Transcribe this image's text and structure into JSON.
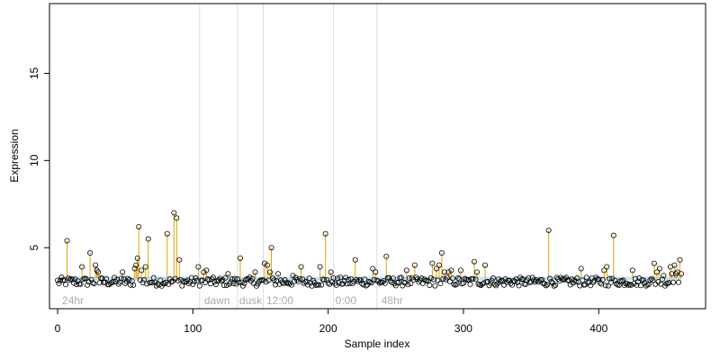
{
  "chart_data": {
    "type": "scatter",
    "title": "",
    "xlabel": "Sample index",
    "ylabel": "Expression",
    "xlim": [
      -6,
      479
    ],
    "ylim": [
      1.5,
      19
    ],
    "xticks": [
      0,
      100,
      200,
      300,
      400
    ],
    "yticks": [
      5,
      10,
      15
    ],
    "grid": false,
    "legend": "none",
    "baseline": 3.25,
    "colors": {
      "stem": "#e69f00",
      "band": "#87ceeb",
      "point_stroke": "#000000",
      "divider": "#dddddd",
      "condition_label": "#aaaaaa"
    },
    "condition_dividers": [
      105,
      133,
      152,
      204,
      236
    ],
    "condition_labels": [
      {
        "label": "24hr",
        "x": 2
      },
      {
        "label": "dawn",
        "x": 107
      },
      {
        "label": "dusk",
        "x": 133
      },
      {
        "label": "12:00",
        "x": 153
      },
      {
        "label": "0:00",
        "x": 204
      },
      {
        "label": "48hr",
        "x": 238
      }
    ],
    "highlighted_points": [
      {
        "x": 7,
        "y": 5.4
      },
      {
        "x": 18,
        "y": 3.9
      },
      {
        "x": 24,
        "y": 4.7
      },
      {
        "x": 28,
        "y": 4.0
      },
      {
        "x": 29,
        "y": 3.7
      },
      {
        "x": 30,
        "y": 3.6
      },
      {
        "x": 48,
        "y": 3.6
      },
      {
        "x": 57,
        "y": 3.8
      },
      {
        "x": 58,
        "y": 4.0
      },
      {
        "x": 59,
        "y": 4.4
      },
      {
        "x": 60,
        "y": 6.2
      },
      {
        "x": 62,
        "y": 3.7
      },
      {
        "x": 65,
        "y": 3.9
      },
      {
        "x": 67,
        "y": 5.5
      },
      {
        "x": 81,
        "y": 5.8
      },
      {
        "x": 86,
        "y": 7.0
      },
      {
        "x": 88,
        "y": 6.7
      },
      {
        "x": 90,
        "y": 4.3
      },
      {
        "x": 104,
        "y": 3.9
      },
      {
        "x": 108,
        "y": 3.6
      },
      {
        "x": 110,
        "y": 3.7
      },
      {
        "x": 126,
        "y": 3.5
      },
      {
        "x": 135,
        "y": 4.4
      },
      {
        "x": 146,
        "y": 3.6
      },
      {
        "x": 153,
        "y": 4.1
      },
      {
        "x": 155,
        "y": 4.0
      },
      {
        "x": 157,
        "y": 3.6
      },
      {
        "x": 158,
        "y": 5.0
      },
      {
        "x": 163,
        "y": 3.5
      },
      {
        "x": 174,
        "y": 3.4
      },
      {
        "x": 180,
        "y": 3.9
      },
      {
        "x": 194,
        "y": 3.9
      },
      {
        "x": 198,
        "y": 5.8
      },
      {
        "x": 202,
        "y": 3.6
      },
      {
        "x": 220,
        "y": 4.3
      },
      {
        "x": 233,
        "y": 3.8
      },
      {
        "x": 235,
        "y": 3.6
      },
      {
        "x": 243,
        "y": 4.5
      },
      {
        "x": 258,
        "y": 3.7
      },
      {
        "x": 264,
        "y": 4.0
      },
      {
        "x": 277,
        "y": 4.1
      },
      {
        "x": 280,
        "y": 3.8
      },
      {
        "x": 282,
        "y": 4.0
      },
      {
        "x": 284,
        "y": 4.7
      },
      {
        "x": 286,
        "y": 3.6
      },
      {
        "x": 289,
        "y": 3.6
      },
      {
        "x": 291,
        "y": 3.7
      },
      {
        "x": 298,
        "y": 3.7
      },
      {
        "x": 308,
        "y": 4.2
      },
      {
        "x": 310,
        "y": 3.6
      },
      {
        "x": 316,
        "y": 4.0
      },
      {
        "x": 363,
        "y": 6.0
      },
      {
        "x": 387,
        "y": 3.8
      },
      {
        "x": 404,
        "y": 3.7
      },
      {
        "x": 406,
        "y": 3.9
      },
      {
        "x": 411,
        "y": 5.7
      },
      {
        "x": 425,
        "y": 3.7
      },
      {
        "x": 441,
        "y": 4.1
      },
      {
        "x": 443,
        "y": 3.6
      },
      {
        "x": 445,
        "y": 3.8
      },
      {
        "x": 448,
        "y": 3.4
      },
      {
        "x": 453,
        "y": 3.9
      },
      {
        "x": 454,
        "y": 3.5
      },
      {
        "x": 456,
        "y": 4.0
      },
      {
        "x": 457,
        "y": 3.5
      },
      {
        "x": 458,
        "y": 3.6
      },
      {
        "x": 460,
        "y": 4.3
      },
      {
        "x": 461,
        "y": 3.5
      }
    ],
    "background_points": {
      "x_range": [
        0,
        461
      ],
      "y_min": 2.8,
      "y_max": 3.3,
      "note_count": 462
    }
  }
}
